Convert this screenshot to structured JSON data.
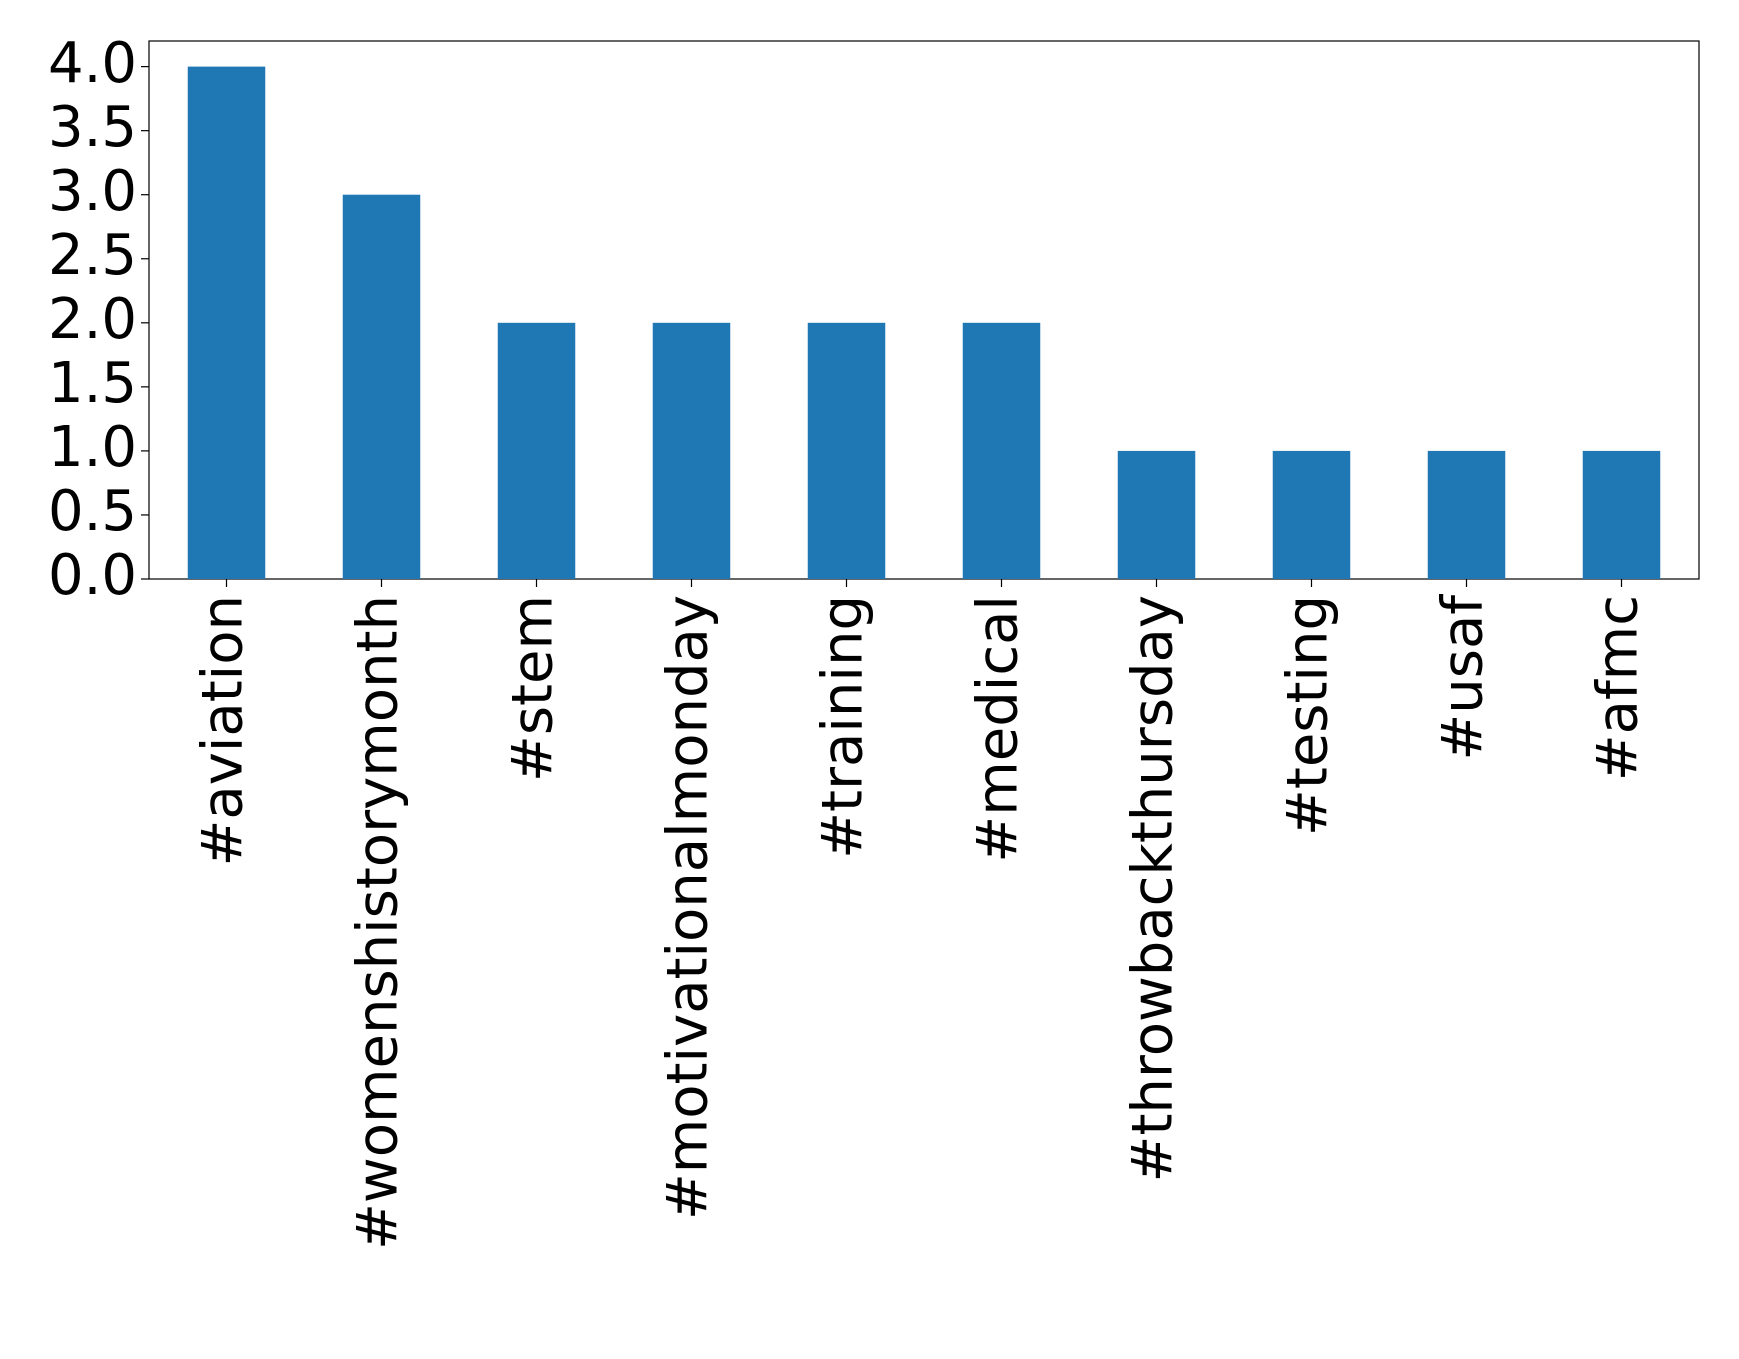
{
  "chart_data": {
    "type": "bar",
    "categories": [
      "#aviation",
      "#womenshistorymonth",
      "#stem",
      "#motivationalmonday",
      "#training",
      "#medical",
      "#throwbackthursday",
      "#testing",
      "#usaf",
      "#afmc"
    ],
    "values": [
      4,
      3,
      2,
      2,
      2,
      2,
      1,
      1,
      1,
      1
    ],
    "color": "#1f77b4",
    "ylim": [
      0,
      4.2
    ],
    "yticks": [
      {
        "value": 0,
        "label": "0.0"
      },
      {
        "value": 0.5,
        "label": "0.5"
      },
      {
        "value": 1,
        "label": "1.0"
      },
      {
        "value": 1.5,
        "label": "1.5"
      },
      {
        "value": 2,
        "label": "2.0"
      },
      {
        "value": 2.5,
        "label": "2.5"
      },
      {
        "value": 3,
        "label": "3.0"
      },
      {
        "value": 3.5,
        "label": "3.5"
      },
      {
        "value": 4,
        "label": "4.0"
      }
    ],
    "grid": false
  }
}
